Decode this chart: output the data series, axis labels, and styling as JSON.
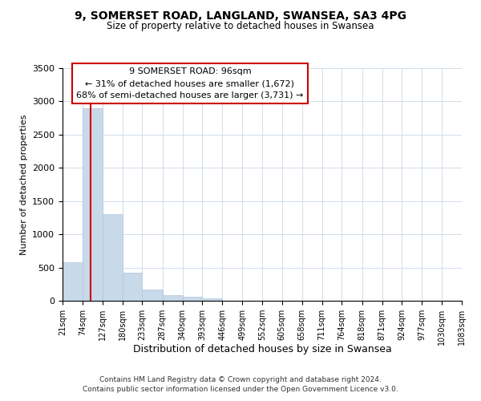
{
  "title_line1": "9, SOMERSET ROAD, LANGLAND, SWANSEA, SA3 4PG",
  "title_line2": "Size of property relative to detached houses in Swansea",
  "xlabel": "Distribution of detached houses by size in Swansea",
  "ylabel": "Number of detached properties",
  "footer_line1": "Contains HM Land Registry data © Crown copyright and database right 2024.",
  "footer_line2": "Contains public sector information licensed under the Open Government Licence v3.0.",
  "annotation_title": "9 SOMERSET ROAD: 96sqm",
  "annotation_line1": "← 31% of detached houses are smaller (1,672)",
  "annotation_line2": "68% of semi-detached houses are larger (3,731) →",
  "vline_x": 96,
  "bar_color": "#c8d9ea",
  "bar_edge_color": "#b0c8dc",
  "grid_color": "#d0dcea",
  "ann_box_edgecolor": "#cc0000",
  "vline_color": "#cc0000",
  "background_color": "#ffffff",
  "bins": [
    21,
    74,
    127,
    180,
    233,
    287,
    340,
    393,
    446,
    499,
    552,
    605,
    658,
    711,
    764,
    818,
    871,
    924,
    977,
    1030,
    1083
  ],
  "counts": [
    580,
    2900,
    1300,
    420,
    175,
    80,
    55,
    40,
    0,
    0,
    0,
    0,
    0,
    0,
    0,
    0,
    0,
    0,
    0,
    0
  ],
  "ylim_max": 3500,
  "yticks": [
    0,
    500,
    1000,
    1500,
    2000,
    2500,
    3000,
    3500
  ]
}
